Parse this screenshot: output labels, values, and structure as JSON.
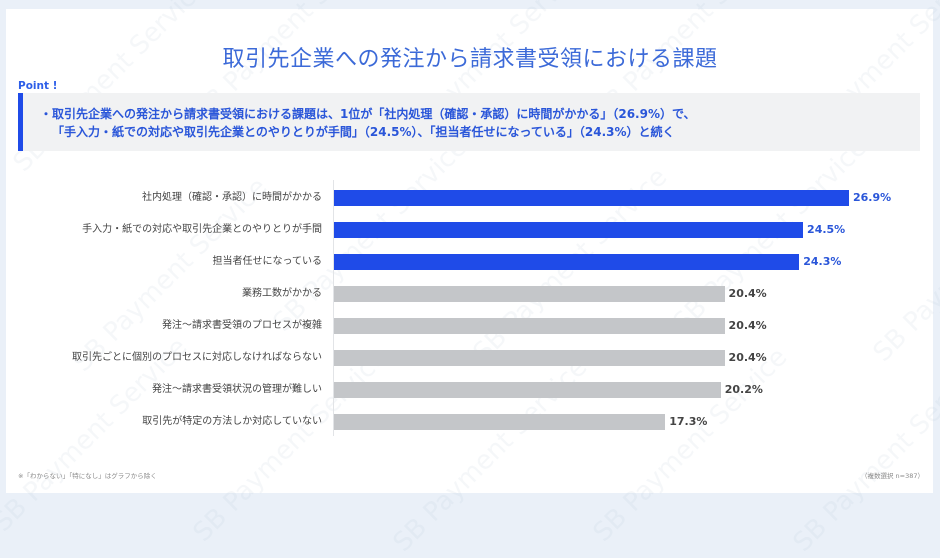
{
  "title": "取引先企業への発注から請求書受領における課題",
  "point": {
    "label": "Point !",
    "line1": "・取引先企業への発注から請求書受領における課題は、1位が「社内処理（確認・承認）に時間がかかる」（26.9%）で、",
    "line2": "「手入力・紙での対応や取引先企業とのやりとりが手間」（24.5%）、「担当者任せになっている」（24.3%）と続く"
  },
  "notes": {
    "left": "※「わからない」「特になし」はグラフから除く",
    "right": "（複数選択 n=387）"
  },
  "watermark": "SB Payment Service",
  "colors": {
    "highlight": "#1f4be8",
    "normal": "#c4c6c9",
    "title": "#3c6ad8"
  },
  "chart_data": {
    "type": "bar",
    "orientation": "horizontal",
    "title": "取引先企業への発注から請求書受領における課題",
    "xlabel": "",
    "ylabel": "",
    "unit": "%",
    "categories": [
      "社内処理（確認・承認）に時間がかかる",
      "手入力・紙での対応や取引先企業とのやりとりが手間",
      "担当者任せになっている",
      "業務工数がかかる",
      "発注～請求書受領のプロセスが複雑",
      "取引先ごとに個別のプロセスに対応しなければならない",
      "発注～請求書受領状況の管理が難しい",
      "取引先が特定の方法しか対応していない"
    ],
    "values": [
      26.9,
      24.5,
      24.3,
      20.4,
      20.4,
      20.4,
      20.2,
      17.3
    ],
    "value_labels": [
      "26.9%",
      "24.5%",
      "24.3%",
      "20.4%",
      "20.4%",
      "20.4%",
      "20.2%",
      "17.3%"
    ],
    "highlighted": [
      true,
      true,
      true,
      false,
      false,
      false,
      false,
      false
    ],
    "xlim": [
      0,
      28
    ],
    "grid": false,
    "legend": null,
    "annotations": [
      "※「わからない」「特になし」はグラフから除く",
      "（複数選択 n=387）"
    ]
  }
}
